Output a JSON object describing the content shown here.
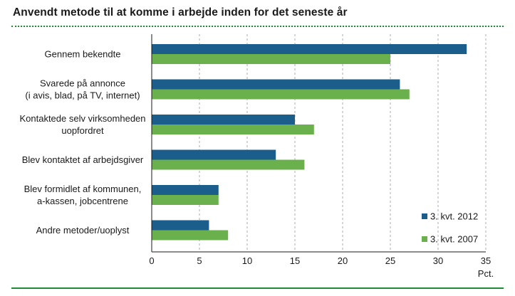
{
  "chart_data": {
    "type": "bar",
    "orientation": "horizontal",
    "title": "Anvendt metode til at komme i arbejde inden for det seneste år",
    "categories": [
      [
        "Gennem bekendte"
      ],
      [
        "Svarede på annonce",
        "(i avis, blad, på TV, internet)"
      ],
      [
        "Kontaktede selv virksomheden",
        "uopfordret"
      ],
      [
        "Blev kontaktet af arbejdsgiver"
      ],
      [
        "Blev formidlet af kommunen,",
        "a-kassen, jobcentrene"
      ],
      [
        "Andre metoder/uoplyst"
      ]
    ],
    "series": [
      {
        "name": "3. kvt. 2012",
        "color": "#1b5e8c",
        "values": [
          33,
          26,
          15,
          13,
          7,
          6
        ]
      },
      {
        "name": "3. kvt. 2007",
        "color": "#6ab04c",
        "values": [
          25,
          27,
          17,
          16,
          7,
          8
        ]
      }
    ],
    "xlim": [
      0,
      35
    ],
    "xticks": [
      0,
      5,
      10,
      15,
      20,
      25,
      30,
      35
    ],
    "xunit": "Pct.",
    "grid": "vertical-dashed",
    "legend_position": "bottom-right"
  }
}
